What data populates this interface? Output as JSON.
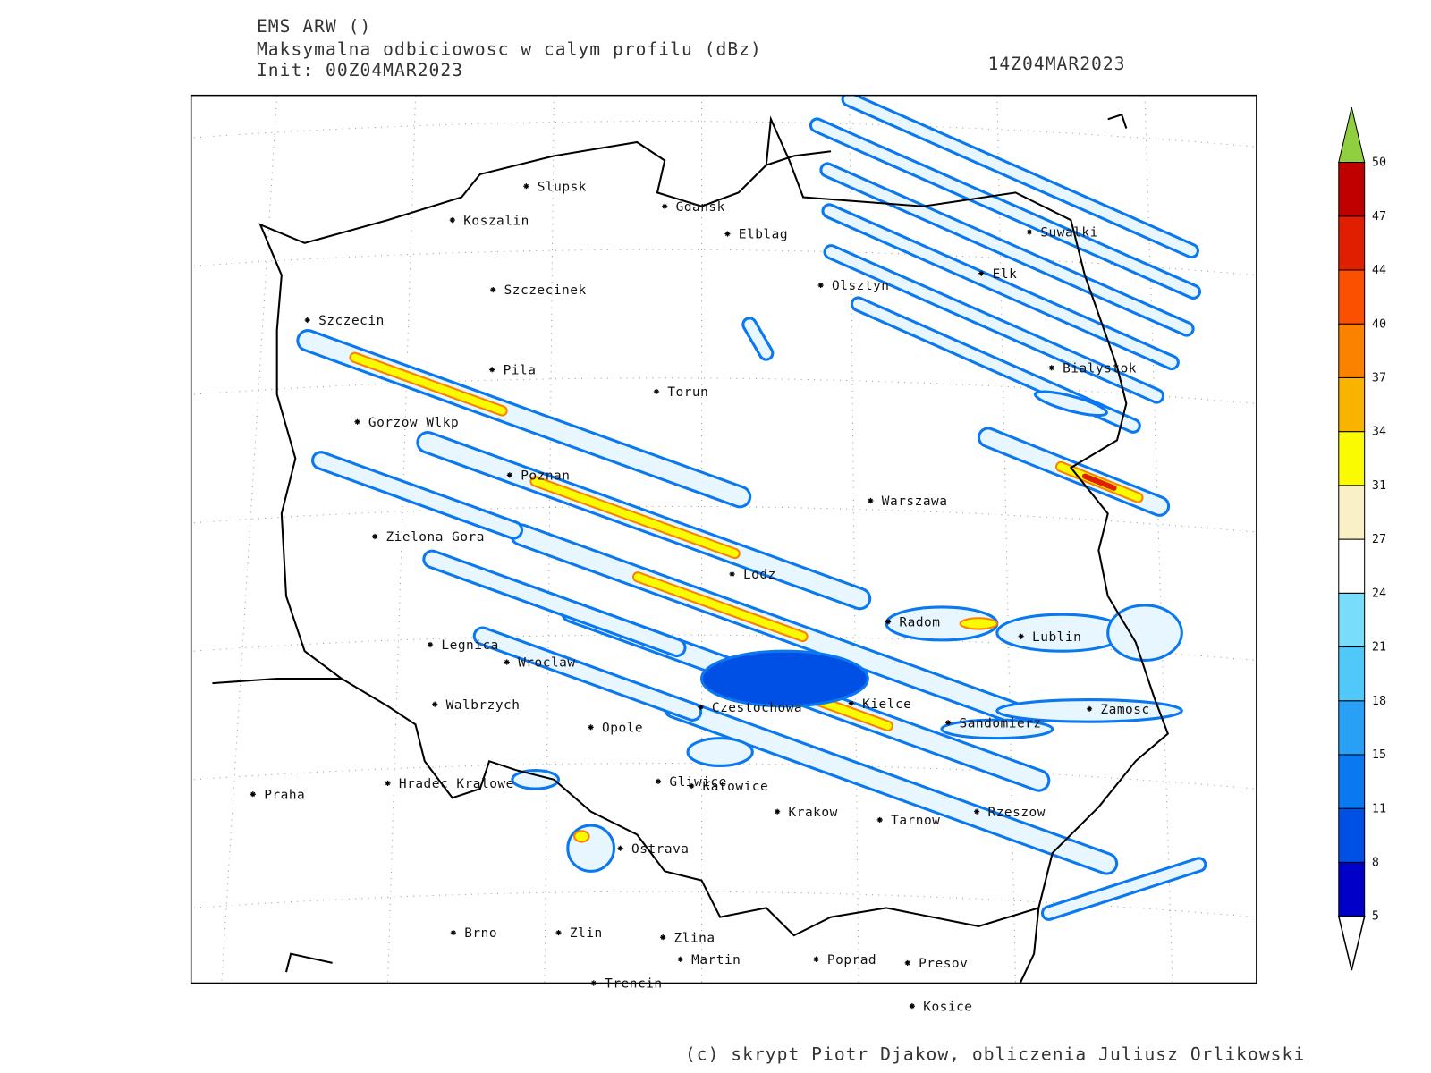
{
  "header": {
    "title": "EMS ARW ()",
    "subtitle": "Maksymalna odbiciowosc w calym profilu (dBz)",
    "init": "Init: 00Z04MAR2023",
    "valid": "14Z04MAR2023"
  },
  "cities": [
    "Slupsk",
    "Koszalin",
    "Gdansk",
    "Elblag",
    "Suwalki",
    "Elk",
    "Olsztyn",
    "Szczecinek",
    "Szczecin",
    "Pila",
    "Torun",
    "Bialystok",
    "Gorzow Wlkp",
    "Poznan",
    "Warszawa",
    "Zielona Gora",
    "Lodz",
    "Radom",
    "Lublin",
    "Legnica",
    "Wroclaw",
    "Walbrzych",
    "Czestochowa",
    "Kielce",
    "Zamosc",
    "Sandomierz",
    "Opole",
    "Praha",
    "Hradec Kralowe",
    "Gliwice",
    "Katowice",
    "Krakow",
    "Tarnow",
    "Rzeszow",
    "Ostrava",
    "Brno",
    "Zlin",
    "Zlina",
    "Martin",
    "Poprad",
    "Presov",
    "Trencin",
    "Kosice"
  ],
  "colorbar": {
    "ticks": [
      5,
      8,
      11,
      15,
      18,
      21,
      24,
      27,
      31,
      34,
      37,
      40,
      44,
      47,
      50
    ],
    "colors": [
      "#0000c8",
      "#0050e6",
      "#0a78f0",
      "#28a0f5",
      "#50c8fa",
      "#78dcfa",
      "#ffffff",
      "#faf0c8",
      "#fafa00",
      "#fab400",
      "#fa8200",
      "#fa5000",
      "#e01e00",
      "#c00000"
    ],
    "over_color": "#90d040",
    "under_color": "#ffffff"
  },
  "credits": "(c) skrypt Piotr Djakow, obliczenia Juliusz Orlikowski"
}
